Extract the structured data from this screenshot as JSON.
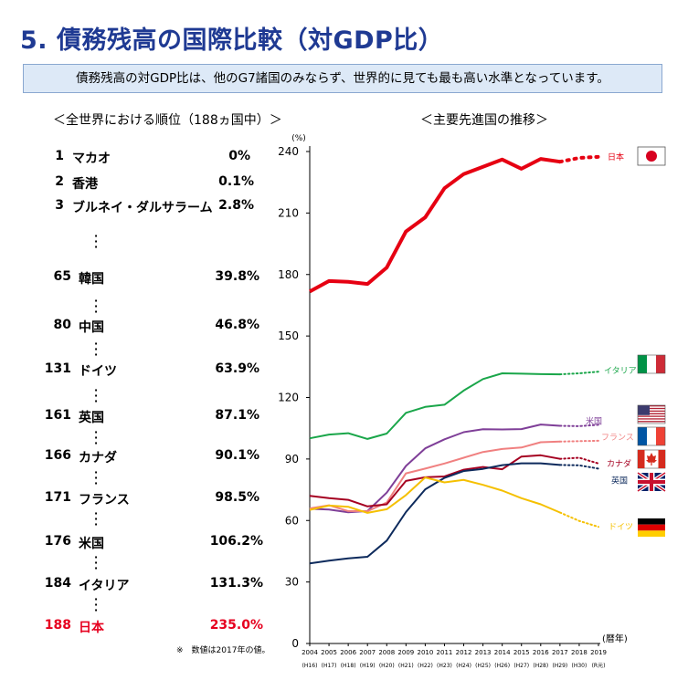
{
  "header": {
    "title": "5. 債務残高の国際比較（対GDP比）",
    "summary": "債務残高の対GDP比は、他のG7諸国のみならず、世界的に見ても最も高い水準となっています。"
  },
  "ranking": {
    "heading": "＜全世界における順位（188ヵ国中）＞",
    "rows": [
      {
        "rank": "1",
        "country": "マカオ",
        "value": "0%"
      },
      {
        "rank": "2",
        "country": "香港",
        "value": "0.1%"
      },
      {
        "rank": "3",
        "country": "ブルネイ・ダルサラーム",
        "value": "2.8%"
      },
      {
        "rank": "65",
        "country": "韓国",
        "value": "39.8%"
      },
      {
        "rank": "80",
        "country": "中国",
        "value": "46.8%"
      },
      {
        "rank": "131",
        "country": "ドイツ",
        "value": "63.9%"
      },
      {
        "rank": "161",
        "country": "英国",
        "value": "87.1%"
      },
      {
        "rank": "166",
        "country": "カナダ",
        "value": "90.1%"
      },
      {
        "rank": "171",
        "country": "フランス",
        "value": "98.5%"
      },
      {
        "rank": "176",
        "country": "米国",
        "value": "106.2%"
      },
      {
        "rank": "184",
        "country": "イタリア",
        "value": "131.3%"
      },
      {
        "rank": "188",
        "country": "日本",
        "value": "235.0%"
      }
    ],
    "note": "※　数値は2017年の値。"
  },
  "trend_heading": "＜主要先進国の推移＞",
  "chart_data": {
    "type": "line",
    "y_unit": "(%)",
    "x_unit": "(暦年)",
    "ylim": [
      0,
      240
    ],
    "yticks": [
      0,
      30,
      60,
      90,
      120,
      150,
      180,
      210,
      240
    ],
    "x": [
      2004,
      2005,
      2006,
      2007,
      2008,
      2009,
      2010,
      2011,
      2012,
      2013,
      2014,
      2015,
      2016,
      2017,
      2018,
      2019
    ],
    "x_tick_labels": [
      "2004",
      "2005",
      "2006",
      "2007",
      "2008",
      "2009",
      "2010",
      "2011",
      "2012",
      "2013",
      "2014",
      "2015",
      "2016",
      "2017",
      "2018",
      "2019"
    ],
    "x_era_labels": [
      "(H16)",
      "(H17)",
      "(H18)",
      "(H19)",
      "(H20)",
      "(H21)",
      "(H22)",
      "(H23)",
      "(H24)",
      "(H25)",
      "(H26)",
      "(H27)",
      "(H28)",
      "(H29)",
      "(H30)",
      "(R元)"
    ],
    "grid": false,
    "series": [
      {
        "name": "日本",
        "color": "#e60012",
        "solid_end": 2017,
        "values": [
          171.7,
          176.8,
          176.4,
          175.4,
          183.4,
          201.0,
          207.9,
          222.1,
          229.0,
          232.5,
          236.1,
          231.6,
          236.4,
          235.0,
          236.9,
          237.4
        ]
      },
      {
        "name": "イタリア",
        "color": "#1aa64a",
        "solid_end": 2017,
        "values": [
          100.1,
          101.9,
          102.6,
          99.8,
          102.4,
          112.5,
          115.4,
          116.5,
          123.4,
          129.0,
          131.8,
          131.6,
          131.4,
          131.3,
          131.8,
          132.6
        ]
      },
      {
        "name": "米国",
        "color": "#7f3f98",
        "solid_end": 2017,
        "values": [
          65.7,
          65.3,
          64.0,
          64.6,
          73.6,
          86.6,
          95.2,
          99.6,
          103.1,
          104.5,
          104.4,
          104.6,
          106.8,
          106.2,
          106.0,
          106.7
        ]
      },
      {
        "name": "フランス",
        "color": "#f08080",
        "solid_end": 2017,
        "values": [
          65.9,
          67.4,
          64.6,
          64.5,
          68.8,
          83.0,
          85.3,
          87.8,
          90.6,
          93.4,
          94.9,
          95.6,
          98.2,
          98.5,
          98.7,
          98.9
        ]
      },
      {
        "name": "カナダ",
        "color": "#a50021",
        "solid_end": 2017,
        "values": [
          72.0,
          70.9,
          70.1,
          66.9,
          67.9,
          79.3,
          81.1,
          81.5,
          84.8,
          86.1,
          85.0,
          91.2,
          91.8,
          90.1,
          90.6,
          87.8
        ]
      },
      {
        "name": "英国",
        "color": "#0d2a5c",
        "solid_end": 2017,
        "values": [
          39.1,
          40.4,
          41.5,
          42.3,
          50.2,
          64.1,
          75.2,
          80.8,
          84.1,
          85.2,
          87.0,
          87.9,
          87.9,
          87.1,
          86.9,
          85.3
        ]
      },
      {
        "name": "ドイツ",
        "color": "#f5c000",
        "solid_end": 2017,
        "values": [
          65.2,
          67.3,
          66.7,
          63.7,
          65.5,
          72.4,
          81.0,
          78.6,
          79.8,
          77.4,
          74.6,
          70.9,
          67.9,
          63.9,
          59.8,
          56.9
        ]
      }
    ]
  }
}
